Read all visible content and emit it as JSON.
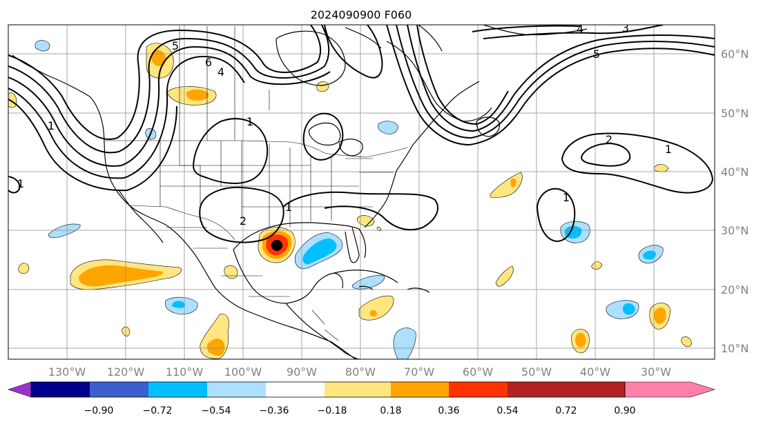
{
  "title": "2024090900 F060",
  "map": {
    "lon_labels": [
      "130°W",
      "120°W",
      "110°W",
      "100°W",
      "90°W",
      "80°W",
      "70°W",
      "60°W",
      "50°W",
      "40°W",
      "30°W"
    ],
    "lat_labels": [
      "60°N",
      "50°N",
      "40°N",
      "30°N",
      "20°N",
      "10°N"
    ],
    "contour_labels": [
      "5",
      "6",
      "4",
      "4",
      "3",
      "5",
      "1",
      "2",
      "1",
      "2",
      "1",
      "1",
      "1",
      "1"
    ]
  },
  "colorbar": {
    "tick_labels": [
      "−0.90",
      "−0.72",
      "−0.54",
      "−0.36",
      "−0.18",
      "0.18",
      "0.36",
      "0.54",
      "0.72",
      "0.90"
    ],
    "colors": [
      "#9932CC",
      "#00008B",
      "#3B5FCC",
      "#00BFFF",
      "#ADDFFF",
      "#FFFFFF",
      "#FFE680",
      "#FFA500",
      "#FF3300",
      "#B22222",
      "#FF80A8"
    ]
  },
  "colors": {
    "yellow": "#FFE680",
    "orange": "#FFA500",
    "red": "#FF3300",
    "lightblue": "#ADDFFF",
    "blue": "#00BFFF"
  }
}
